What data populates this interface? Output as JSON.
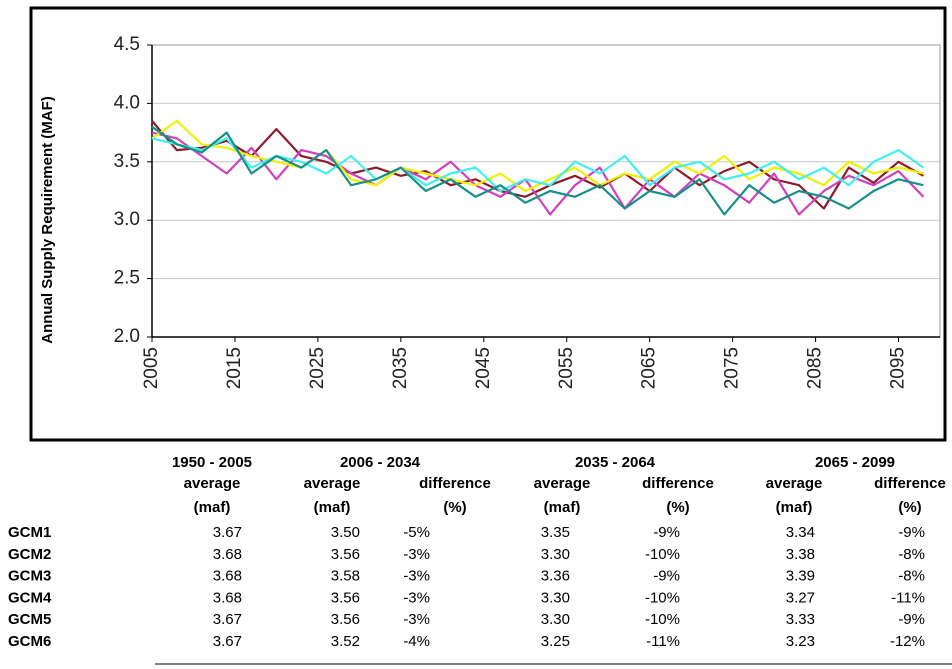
{
  "chart_data": {
    "type": "line",
    "y_label": "Annual Supply Requirement (MAF)",
    "x": [
      2005,
      2008,
      2011,
      2014,
      2017,
      2020,
      2023,
      2026,
      2029,
      2032,
      2035,
      2038,
      2041,
      2044,
      2047,
      2050,
      2053,
      2056,
      2059,
      2062,
      2065,
      2068,
      2071,
      2074,
      2077,
      2080,
      2083,
      2086,
      2089,
      2092,
      2095,
      2098
    ],
    "series": [
      {
        "color": "#8b1c2a",
        "values": [
          3.85,
          3.6,
          3.62,
          3.68,
          3.55,
          3.78,
          3.55,
          3.5,
          3.4,
          3.45,
          3.38,
          3.42,
          3.3,
          3.35,
          3.25,
          3.2,
          3.3,
          3.38,
          3.28,
          3.4,
          3.25,
          3.45,
          3.3,
          3.42,
          3.5,
          3.35,
          3.3,
          3.1,
          3.45,
          3.32,
          3.5,
          3.38
        ]
      },
      {
        "color": "#d040c0",
        "values": [
          3.75,
          3.7,
          3.55,
          3.4,
          3.62,
          3.35,
          3.6,
          3.55,
          3.4,
          3.3,
          3.45,
          3.35,
          3.5,
          3.3,
          3.2,
          3.35,
          3.05,
          3.3,
          3.45,
          3.1,
          3.35,
          3.2,
          3.4,
          3.3,
          3.15,
          3.4,
          3.05,
          3.25,
          3.38,
          3.3,
          3.42,
          3.2
        ]
      },
      {
        "color": "#f0f000",
        "values": [
          3.7,
          3.85,
          3.65,
          3.62,
          3.55,
          3.5,
          3.45,
          3.6,
          3.35,
          3.3,
          3.45,
          3.4,
          3.35,
          3.3,
          3.4,
          3.25,
          3.35,
          3.45,
          3.3,
          3.4,
          3.35,
          3.5,
          3.4,
          3.55,
          3.35,
          3.45,
          3.4,
          3.3,
          3.5,
          3.4,
          3.45,
          3.4
        ]
      },
      {
        "color": "#40f0f0",
        "values": [
          3.7,
          3.65,
          3.6,
          3.7,
          3.45,
          3.55,
          3.5,
          3.4,
          3.55,
          3.35,
          3.45,
          3.3,
          3.4,
          3.45,
          3.25,
          3.35,
          3.3,
          3.5,
          3.4,
          3.55,
          3.3,
          3.45,
          3.5,
          3.35,
          3.4,
          3.5,
          3.35,
          3.45,
          3.3,
          3.5,
          3.6,
          3.45
        ]
      },
      {
        "color": "#16918a",
        "values": [
          3.8,
          3.65,
          3.58,
          3.75,
          3.4,
          3.55,
          3.45,
          3.6,
          3.3,
          3.35,
          3.45,
          3.25,
          3.35,
          3.2,
          3.3,
          3.15,
          3.25,
          3.2,
          3.3,
          3.1,
          3.25,
          3.2,
          3.35,
          3.05,
          3.3,
          3.15,
          3.25,
          3.2,
          3.1,
          3.25,
          3.35,
          3.3
        ]
      }
    ],
    "xlim": [
      2005,
      2100
    ],
    "xticks": [
      2005,
      2015,
      2025,
      2035,
      2045,
      2055,
      2065,
      2075,
      2085,
      2095
    ],
    "ylim": [
      2.0,
      4.5
    ],
    "yticks": [
      {
        "value": 2,
        "label": "2.0"
      },
      2.5,
      {
        "value": 3,
        "label": "3.0"
      },
      3.5,
      {
        "value": 4,
        "label": "4.0"
      },
      4.5
    ],
    "grid": true
  },
  "table": {
    "periods": [
      "1950 - 2005",
      "2006 - 2034",
      "2035 - 2064",
      "2065 - 2099"
    ],
    "header_row1": [
      "average",
      "average",
      "difference",
      "average",
      "difference",
      "average",
      "difference"
    ],
    "header_row2": [
      "(maf)",
      "(maf)",
      "(%)",
      "(maf)",
      "(%)",
      "(maf)",
      "(%)"
    ],
    "rows": [
      [
        "GCM1",
        "3.67",
        "3.50",
        "-5%",
        "3.35",
        "-9%",
        "3.34",
        "-9%"
      ],
      [
        "GCM2",
        "3.68",
        "3.56",
        "-3%",
        "3.30",
        "-10%",
        "3.38",
        "-8%"
      ],
      [
        "GCM3",
        "3.68",
        "3.58",
        "-3%",
        "3.36",
        "-9%",
        "3.39",
        "-8%"
      ],
      [
        "GCM4",
        "3.68",
        "3.56",
        "-3%",
        "3.30",
        "-10%",
        "3.27",
        "-11%"
      ],
      [
        "GCM5",
        "3.67",
        "3.56",
        "-3%",
        "3.30",
        "-10%",
        "3.33",
        "-9%"
      ],
      [
        "GCM6",
        "3.67",
        "3.52",
        "-4%",
        "3.25",
        "-11%",
        "3.23",
        "-12%"
      ]
    ]
  }
}
